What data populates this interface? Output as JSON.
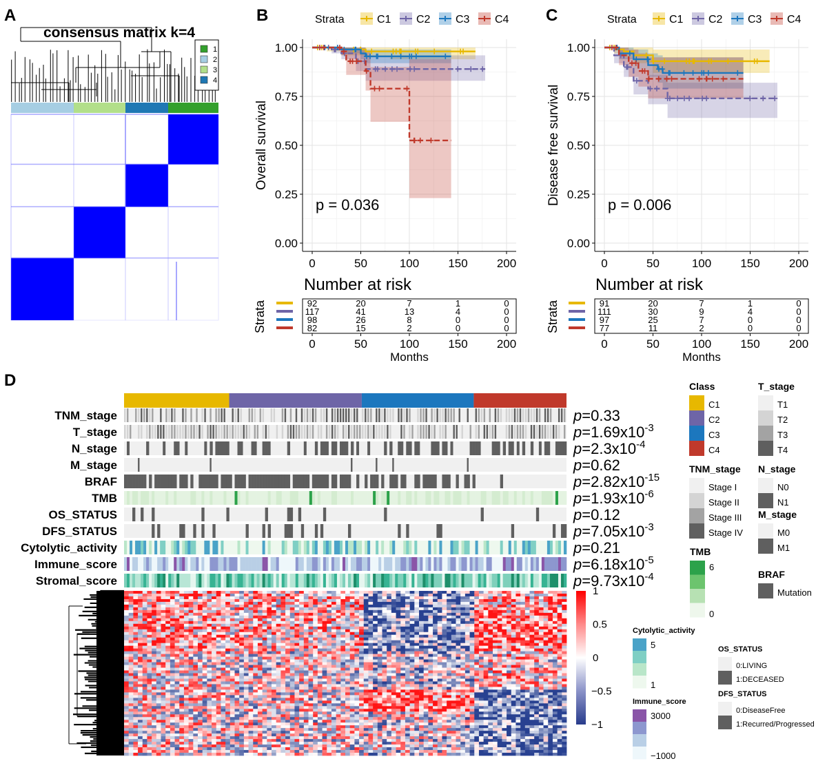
{
  "panel_a": {
    "letter": "A",
    "title": "consensus matrix k=4",
    "legend": [
      {
        "label": "1",
        "color": "#33a02c"
      },
      {
        "label": "2",
        "color": "#a6cee3"
      },
      {
        "label": "3",
        "color": "#b2df8a"
      },
      {
        "label": "4",
        "color": "#1f78b4"
      }
    ],
    "block_color": "#0000ff"
  },
  "panel_b": {
    "letter": "B",
    "strata_title": "Strata",
    "p_text": "p = 0.036",
    "risk_title": "Number at risk",
    "risk_ylabel": "Strata",
    "risk_xlabel": "Months",
    "risk_table": [
      [
        92,
        20,
        7,
        1,
        0
      ],
      [
        117,
        41,
        13,
        4,
        0
      ],
      [
        98,
        26,
        8,
        0,
        0
      ],
      [
        82,
        15,
        2,
        0,
        0
      ]
    ]
  },
  "panel_c": {
    "letter": "C",
    "strata_title": "Strata",
    "p_text": "p = 0.006",
    "risk_title": "Number at risk",
    "risk_ylabel": "Strata",
    "risk_xlabel": "Months",
    "risk_table": [
      [
        91,
        20,
        7,
        1,
        0
      ],
      [
        111,
        30,
        9,
        4,
        0
      ],
      [
        97,
        25,
        7,
        0,
        0
      ],
      [
        77,
        11,
        2,
        0,
        0
      ]
    ]
  },
  "panel_d": {
    "letter": "D",
    "class_widths": [
      153,
      193,
      163,
      135
    ],
    "tracks": [
      {
        "label": "TNM_stage",
        "p": "p=0.33"
      },
      {
        "label": "T_stage",
        "p": "p=1.69x10",
        "exp": "-3"
      },
      {
        "label": "N_stage",
        "p": "p=2.3x10",
        "exp": "-4"
      },
      {
        "label": "M_stage",
        "p": "p=0.62"
      },
      {
        "label": "BRAF",
        "p": "p=2.82x10",
        "exp": "-15"
      },
      {
        "label": "TMB",
        "p": "p=1.93x10",
        "exp": "-6"
      },
      {
        "label": "OS_STATUS",
        "p": "p=0.12"
      },
      {
        "label": "DFS_STATUS",
        "p": "p=7.05x10",
        "exp": "-3"
      },
      {
        "label": "Cytolytic_activity",
        "p": "p=0.21"
      },
      {
        "label": "Immune_score",
        "p": "p=6.18x10",
        "exp": "-5"
      },
      {
        "label": "Stromal_score",
        "p": "p=9.73x10",
        "exp": "-4"
      }
    ],
    "expr_scale": [
      "1",
      "0.5",
      "0",
      "−0.5",
      "−1"
    ],
    "legends": {
      "class": {
        "title": "Class",
        "items": [
          {
            "label": "C1",
            "color": "#e7b800"
          },
          {
            "label": "C2",
            "color": "#6e65a7"
          },
          {
            "label": "C3",
            "color": "#1c77be"
          },
          {
            "label": "C4",
            "color": "#c0392b"
          }
        ]
      },
      "t_stage": {
        "title": "T_stage",
        "items": [
          {
            "label": "T1",
            "color": "#f0f0f0"
          },
          {
            "label": "T2",
            "color": "#d4d4d4"
          },
          {
            "label": "T3",
            "color": "#a3a3a3"
          },
          {
            "label": "T4",
            "color": "#5f5f5f"
          }
        ]
      },
      "tnm_stage": {
        "title": "TNM_stage",
        "items": [
          {
            "label": "Stage I",
            "color": "#f0f0f0"
          },
          {
            "label": "Stage II",
            "color": "#d4d4d4"
          },
          {
            "label": "Stage III",
            "color": "#a3a3a3"
          },
          {
            "label": "Stage IV",
            "color": "#5f5f5f"
          }
        ]
      },
      "n_stage": {
        "title": "N_stage",
        "items": [
          {
            "label": "N0",
            "color": "#f0f0f0"
          },
          {
            "label": "N1",
            "color": "#5f5f5f"
          }
        ]
      },
      "m_stage": {
        "title": "M_stage",
        "items": [
          {
            "label": "M0",
            "color": "#f0f0f0"
          },
          {
            "label": "M1",
            "color": "#5f5f5f"
          }
        ]
      },
      "braf": {
        "title": "BRAF",
        "items": [
          {
            "label": "Mutation",
            "color": "#5f5f5f"
          }
        ]
      },
      "tmb": {
        "title": "TMB",
        "ticks": [
          "6",
          "0"
        ],
        "colors": [
          "#2ca24a",
          "#6cc46e",
          "#b7e1b3",
          "#eef7ec"
        ]
      },
      "cytolytic": {
        "title": "Cytolytic_activity",
        "ticks": [
          "5",
          "1"
        ],
        "colors": [
          "#4aa3c8",
          "#7fcfc4",
          "#b9e6c9",
          "#eef8ee"
        ]
      },
      "immune": {
        "title": "Immune_score",
        "ticks": [
          "3000",
          "−1000"
        ],
        "colors": [
          "#8a55a8",
          "#8d97cf",
          "#b9cfe6",
          "#eef7fb"
        ]
      },
      "os_status": {
        "title": "OS_STATUS",
        "items": [
          {
            "label": "0:LIVING",
            "color": "#f0f0f0"
          },
          {
            "label": "1:DECEASED",
            "color": "#5f5f5f"
          }
        ]
      },
      "dfs_status": {
        "title": "DFS_STATUS",
        "items": [
          {
            "label": "0:DiseaseFree",
            "color": "#f0f0f0"
          },
          {
            "label": "1:Recurred/Progressed",
            "color": "#5f5f5f"
          }
        ]
      }
    }
  },
  "chart_data": [
    {
      "type": "line",
      "title": "",
      "xlabel": "",
      "ylabel": "Overall survival",
      "xlim": [
        0,
        200
      ],
      "ylim": [
        0,
        1
      ],
      "xticks": [
        "0",
        "50",
        "100",
        "150",
        "200"
      ],
      "yticks": [
        "0.00",
        "0.25",
        "0.50",
        "0.75",
        "1.00"
      ],
      "legend": {
        "title": "Strata",
        "position": "top"
      },
      "annotation": "p = 0.036",
      "grid": true,
      "series": [
        {
          "name": "C1",
          "color": "#e7b800",
          "x": [
            0,
            15,
            30,
            55,
            80,
            100,
            120,
            140,
            168
          ],
          "y": [
            1.0,
            1.0,
            0.99,
            0.98,
            0.98,
            0.98,
            0.98,
            0.98,
            0.98
          ],
          "ci_low": [
            1.0,
            0.98,
            0.96,
            0.95,
            0.94,
            0.94,
            0.94,
            0.94,
            0.94
          ],
          "ci_high": [
            1.0,
            1.0,
            1.0,
            1.0,
            1.0,
            1.0,
            1.0,
            1.0,
            1.0
          ]
        },
        {
          "name": "C2",
          "color": "#6e65a7",
          "x": [
            0,
            20,
            30,
            45,
            55,
            80,
            110,
            140,
            178
          ],
          "y": [
            1.0,
            0.99,
            0.97,
            0.93,
            0.89,
            0.89,
            0.89,
            0.89,
            0.89
          ],
          "ci_low": [
            1.0,
            0.97,
            0.94,
            0.88,
            0.83,
            0.83,
            0.83,
            0.83,
            0.83
          ],
          "ci_high": [
            1.0,
            1.0,
            1.0,
            0.99,
            0.96,
            0.96,
            0.96,
            0.96,
            0.96
          ]
        },
        {
          "name": "C3",
          "color": "#1c77be",
          "x": [
            0,
            30,
            50,
            55,
            80,
            100,
            143
          ],
          "y": [
            1.0,
            0.99,
            0.97,
            0.955,
            0.955,
            0.955,
            0.955
          ],
          "ci_low": [
            1.0,
            0.97,
            0.94,
            0.92,
            0.92,
            0.92,
            0.92
          ],
          "ci_high": [
            1.0,
            1.0,
            1.0,
            0.99,
            0.99,
            0.99,
            0.99
          ]
        },
        {
          "name": "C4",
          "color": "#c0392b",
          "x": [
            0,
            30,
            35,
            55,
            60,
            85,
            95,
            100,
            143
          ],
          "y": [
            1.0,
            0.98,
            0.93,
            0.88,
            0.79,
            0.79,
            0.79,
            0.525,
            0.525
          ],
          "ci_low": [
            1.0,
            0.96,
            0.86,
            0.78,
            0.62,
            0.62,
            0.62,
            0.23,
            0.23
          ],
          "ci_high": [
            1.0,
            1.0,
            1.0,
            0.98,
            0.9,
            0.9,
            0.9,
            0.94,
            0.94
          ]
        }
      ]
    },
    {
      "type": "line",
      "title": "",
      "xlabel": "",
      "ylabel": "Disease free survival",
      "xlim": [
        0,
        200
      ],
      "ylim": [
        0,
        1
      ],
      "xticks": [
        "0",
        "50",
        "100",
        "150",
        "200"
      ],
      "yticks": [
        "0.00",
        "0.25",
        "0.50",
        "0.75",
        "1.00"
      ],
      "legend": {
        "title": "Strata",
        "position": "top"
      },
      "annotation": "p = 0.006",
      "grid": true,
      "series": [
        {
          "name": "C1",
          "color": "#e7b800",
          "x": [
            0,
            10,
            20,
            30,
            50,
            70,
            100,
            140,
            170
          ],
          "y": [
            1.0,
            0.99,
            0.98,
            0.96,
            0.93,
            0.93,
            0.93,
            0.93,
            0.93
          ],
          "ci_low": [
            1.0,
            0.97,
            0.95,
            0.92,
            0.87,
            0.87,
            0.87,
            0.87,
            0.87
          ],
          "ci_high": [
            1.0,
            1.0,
            1.0,
            1.0,
            0.99,
            0.99,
            0.99,
            0.99,
            0.99
          ]
        },
        {
          "name": "C2",
          "color": "#6e65a7",
          "x": [
            0,
            10,
            20,
            30,
            45,
            65,
            100,
            140,
            178
          ],
          "y": [
            1.0,
            0.96,
            0.9,
            0.83,
            0.79,
            0.74,
            0.74,
            0.74,
            0.74
          ],
          "ci_low": [
            1.0,
            0.92,
            0.85,
            0.76,
            0.71,
            0.64,
            0.64,
            0.64,
            0.64
          ],
          "ci_high": [
            1.0,
            0.99,
            0.95,
            0.89,
            0.86,
            0.82,
            0.82,
            0.82,
            0.82
          ]
        },
        {
          "name": "C3",
          "color": "#1c77be",
          "x": [
            0,
            15,
            30,
            45,
            55,
            60,
            100,
            143
          ],
          "y": [
            1.0,
            0.97,
            0.94,
            0.91,
            0.89,
            0.87,
            0.87,
            0.87
          ],
          "ci_low": [
            1.0,
            0.94,
            0.89,
            0.85,
            0.82,
            0.79,
            0.79,
            0.79
          ],
          "ci_high": [
            1.0,
            1.0,
            0.99,
            0.97,
            0.96,
            0.95,
            0.95,
            0.95
          ]
        },
        {
          "name": "C4",
          "color": "#c0392b",
          "x": [
            0,
            15,
            25,
            35,
            45,
            50,
            100,
            143
          ],
          "y": [
            1.0,
            0.96,
            0.92,
            0.88,
            0.84,
            0.84,
            0.84,
            0.84
          ],
          "ci_low": [
            1.0,
            0.91,
            0.85,
            0.8,
            0.74,
            0.74,
            0.74,
            0.74
          ],
          "ci_high": [
            1.0,
            1.0,
            0.99,
            0.97,
            0.95,
            0.95,
            0.95,
            0.95
          ]
        }
      ]
    }
  ]
}
